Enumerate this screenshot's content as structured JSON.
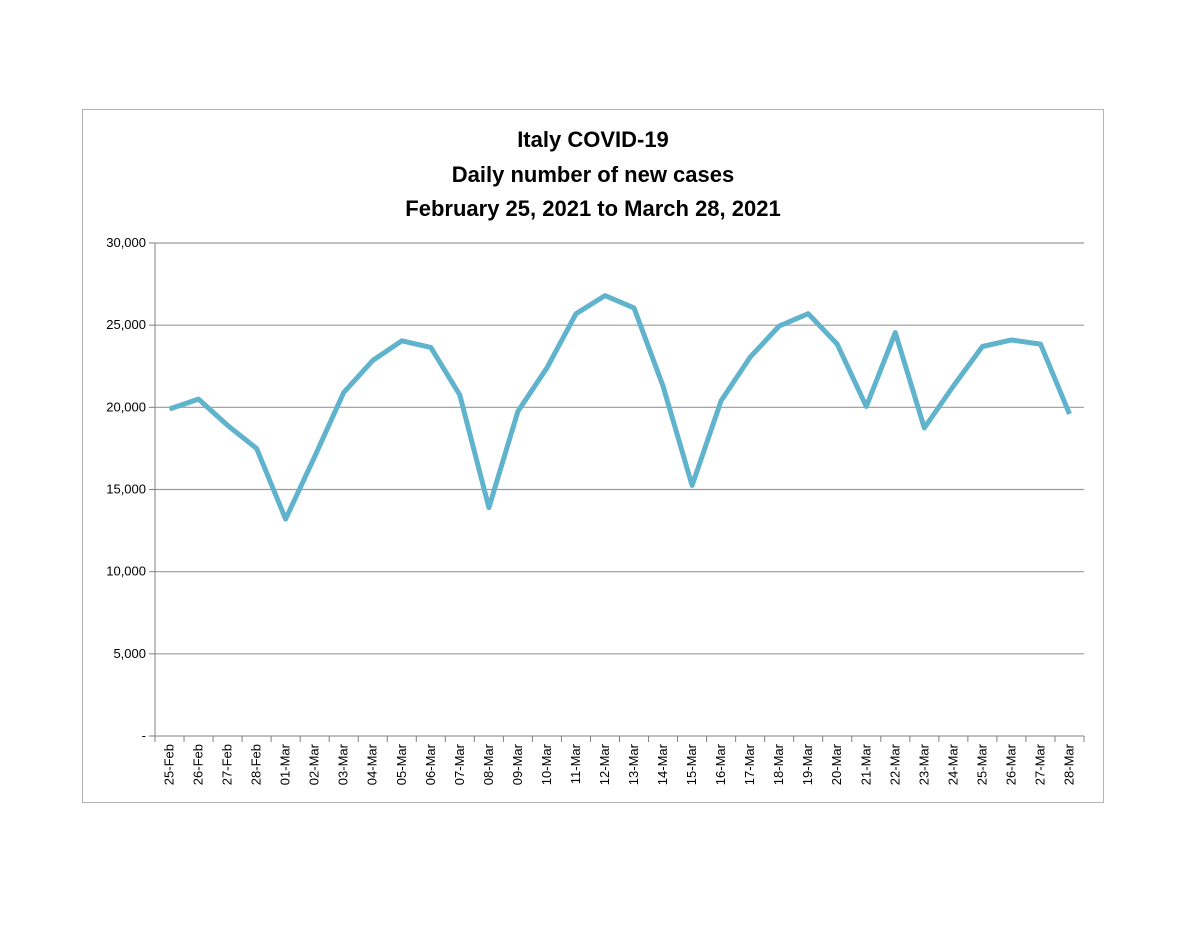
{
  "chart_data": {
    "type": "line",
    "title_lines": [
      "Italy COVID-19",
      "Daily number of new cases",
      "February 25, 2021 to March 28, 2021"
    ],
    "xlabel": "",
    "ylabel": "",
    "ylim": [
      0,
      30000
    ],
    "yticks": [
      0,
      5000,
      10000,
      15000,
      20000,
      25000,
      30000
    ],
    "ytick_labels": [
      "-",
      "5,000",
      "10,000",
      "15,000",
      "20,000",
      "25,000",
      "30,000"
    ],
    "grid": "horizontal",
    "line_color": "#5fb3cc",
    "categories": [
      "25-Feb",
      "26-Feb",
      "27-Feb",
      "28-Feb",
      "01-Mar",
      "02-Mar",
      "03-Mar",
      "04-Mar",
      "05-Mar",
      "06-Mar",
      "07-Mar",
      "08-Mar",
      "09-Mar",
      "10-Mar",
      "11-Mar",
      "12-Mar",
      "13-Mar",
      "14-Mar",
      "15-Mar",
      "16-Mar",
      "17-Mar",
      "18-Mar",
      "19-Mar",
      "20-Mar",
      "21-Mar",
      "22-Mar",
      "23-Mar",
      "24-Mar",
      "25-Mar",
      "26-Mar",
      "27-Mar",
      "28-Mar"
    ],
    "series": [
      {
        "values": [
          19900,
          20500,
          18900,
          17500,
          13200,
          17000,
          20900,
          22850,
          24050,
          23650,
          20750,
          13900,
          19750,
          22400,
          25700,
          26800,
          26050,
          21300,
          15250,
          20400,
          23050,
          24950,
          25700,
          23850,
          20050,
          24550,
          18750,
          21300,
          23700,
          24100,
          23850,
          19600
        ]
      }
    ]
  }
}
